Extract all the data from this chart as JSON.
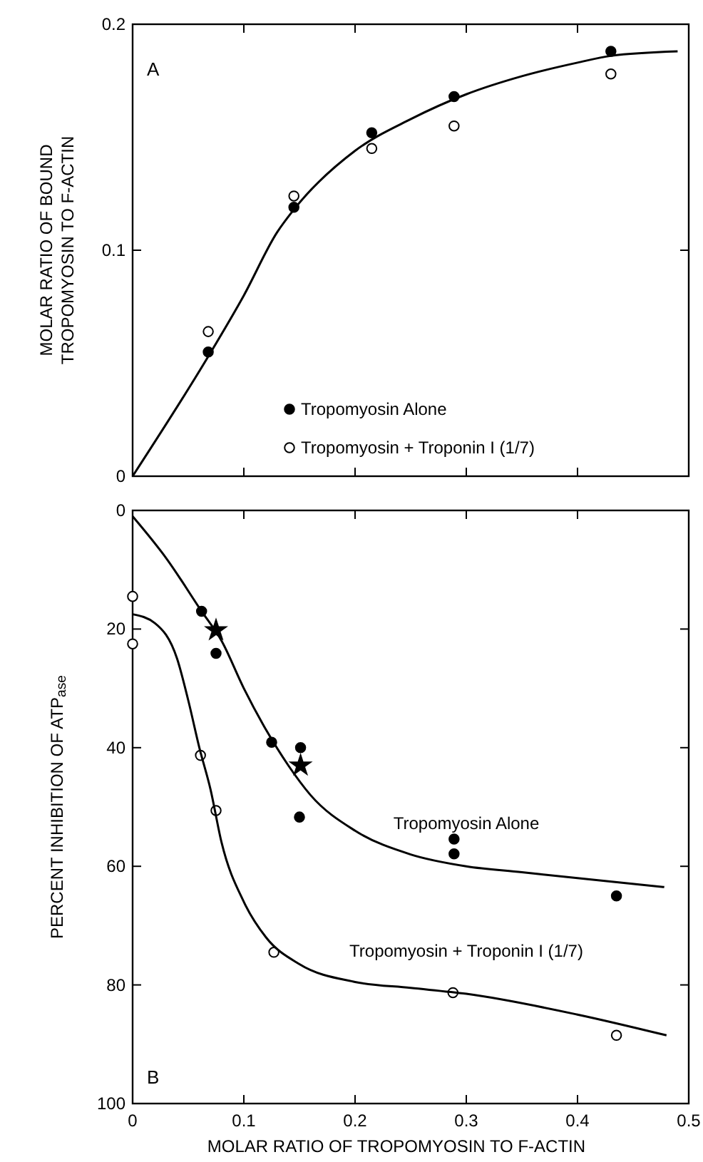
{
  "chart_data": [
    {
      "type": "scatter",
      "ylabel": "MOLAR RATIO OF BOUND\nTROPOMYOSIN TO F-ACTIN",
      "xlim": [
        0,
        0.5
      ],
      "xticks": [
        0,
        0.1,
        0.2,
        0.3,
        0.4,
        0.5
      ],
      "ylim": [
        0,
        0.2
      ],
      "yticks": [
        0,
        0.1,
        0.2
      ],
      "tick_labels": "y",
      "grid": false,
      "legend": "bottom right",
      "annotations": [
        "A"
      ],
      "series": [
        {
          "name": "Tropomyosin Alone",
          "marker": "circle",
          "color": "#000000",
          "x": [
            0.068,
            0.145,
            0.215,
            0.289,
            0.43
          ],
          "values": [
            0.055,
            0.119,
            0.152,
            0.168,
            0.188
          ]
        },
        {
          "name": "Tropomyosin + Troponin I (1/7)",
          "marker": "circle",
          "color": "#ffffff",
          "x": [
            0.068,
            0.145,
            0.215,
            0.289,
            0.43
          ],
          "values": [
            0.064,
            0.124,
            0.145,
            0.155,
            0.178
          ]
        },
        {
          "type": "line",
          "line_style": "solid",
          "color": "#000000",
          "x": [
            0,
            0.068,
            0.1,
            0.13,
            0.145,
            0.2,
            0.25,
            0.3,
            0.35,
            0.4,
            0.43,
            0.49
          ],
          "values": [
            0,
            0.053,
            0.08,
            0.108,
            0.118,
            0.144,
            0.158,
            0.169,
            0.177,
            0.183,
            0.186,
            0.188
          ]
        }
      ]
    },
    {
      "type": "scatter",
      "xlabel": "MOLAR RATIO OF TROPOMYOSIN TO F-ACTIN",
      "ylabel": "PERCENT INHIBITION OF ATP$_{ase}$",
      "xlim": [
        0,
        0.5
      ],
      "xticks": [
        0,
        0.1,
        0.2,
        0.3,
        0.4,
        0.5
      ],
      "ylim": [
        100,
        0
      ],
      "yticks": [
        0,
        20,
        40,
        60,
        80,
        100
      ],
      "grid": false,
      "legend": false,
      "annotations": [
        "B"
      ],
      "series": [
        {
          "marker": "circle",
          "color": "#000000",
          "x": [
            0.062,
            0.075,
            0.125,
            0.151,
            0.15,
            0.289,
            0.289,
            0.435
          ],
          "values": [
            17,
            24.1,
            39.1,
            40,
            51.7,
            55.4,
            57.9,
            65
          ]
        },
        {
          "marker": "star",
          "color": "#000000",
          "x": [
            0.075,
            0.151
          ],
          "values": [
            20.2,
            43
          ]
        },
        {
          "marker": "circle",
          "color": "#ffffff",
          "x": [
            0,
            0,
            0.061,
            0.075,
            0.127,
            0.288,
            0.435
          ],
          "values": [
            14.5,
            22.5,
            41.3,
            50.6,
            74.5,
            81.3,
            88.5
          ]
        },
        {
          "name": "Tropomyosin Alone",
          "type": "line",
          "line_style": "solid",
          "color": "#000000",
          "x": [
            0,
            0.03,
            0.062,
            0.08,
            0.1,
            0.12,
            0.14,
            0.16,
            0.2,
            0.25,
            0.3,
            0.35,
            0.4,
            0.478
          ],
          "values": [
            1,
            8,
            17,
            22,
            30,
            37,
            43,
            48,
            54,
            58,
            60,
            61,
            62,
            63.5
          ]
        },
        {
          "name": "Tropomyosin + Troponin I (1/7)",
          "type": "line",
          "line_style": "solid",
          "color": "#000000",
          "x": [
            0,
            0.02,
            0.04,
            0.05,
            0.06,
            0.07,
            0.08,
            0.1,
            0.12,
            0.15,
            0.2,
            0.25,
            0.3,
            0.4,
            0.48
          ],
          "values": [
            17.5,
            19,
            25,
            32,
            40,
            47,
            56,
            66,
            72,
            76.5,
            79.5,
            80.5,
            81.5,
            85,
            88.5
          ]
        }
      ]
    }
  ]
}
